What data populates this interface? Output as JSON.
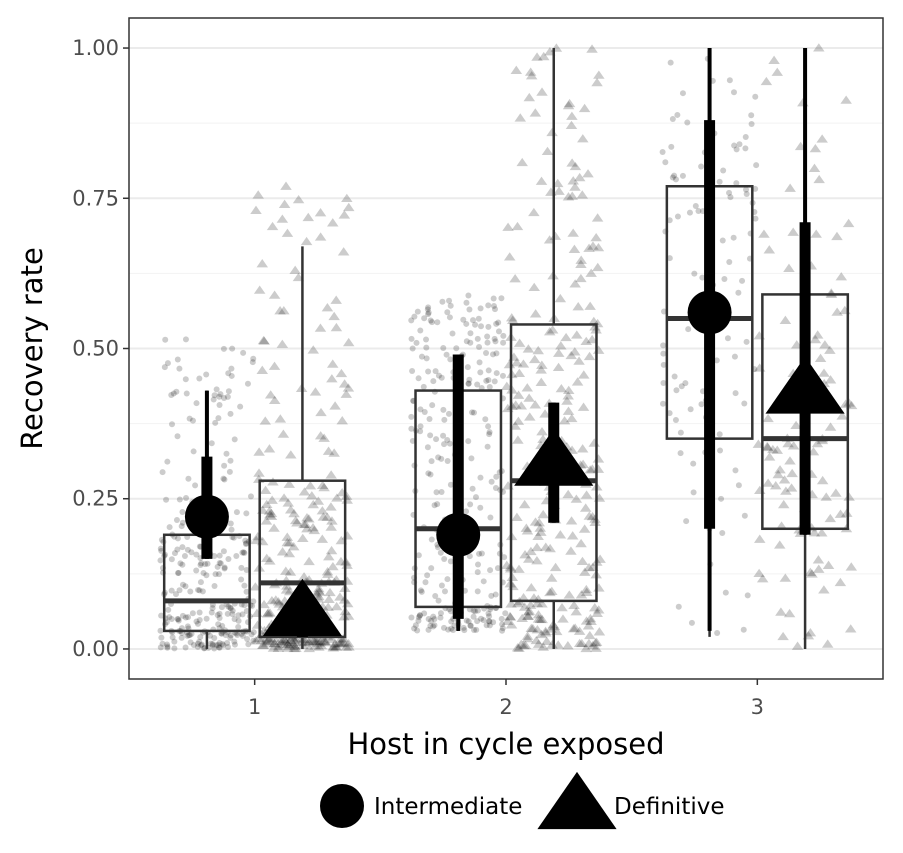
{
  "chart_data": {
    "type": "boxplot",
    "xlabel": "Host in cycle exposed",
    "ylabel": "Recovery rate",
    "categories": [
      "1",
      "2",
      "3"
    ],
    "y_ticks": [
      "0.00",
      "0.25",
      "0.50",
      "0.75",
      "1.00"
    ],
    "ylim": [
      -0.05,
      1.05
    ],
    "grid": true,
    "legend_position": "bottom",
    "series": [
      {
        "name": "Intermediate",
        "shape": "circle",
        "boxes": [
          {
            "category": "1",
            "q1": 0.03,
            "median": 0.08,
            "q3": 0.19,
            "whisker_low": 0.0,
            "whisker_high": 0.43
          },
          {
            "category": "2",
            "q1": 0.07,
            "median": 0.2,
            "q3": 0.43,
            "whisker_low": 0.03,
            "whisker_high": 0.49
          },
          {
            "category": "3",
            "q1": 0.35,
            "median": 0.55,
            "q3": 0.77,
            "whisker_low": 0.02,
            "whisker_high": 1.0
          }
        ],
        "estimates": [
          {
            "category": "1",
            "mean": 0.22,
            "ci_inner": [
              0.15,
              0.32
            ],
            "ci_outer": [
              0.15,
              0.43
            ]
          },
          {
            "category": "2",
            "mean": 0.19,
            "ci_inner": [
              0.05,
              0.49
            ],
            "ci_outer": [
              0.03,
              0.49
            ]
          },
          {
            "category": "3",
            "mean": 0.56,
            "ci_inner": [
              0.2,
              0.88
            ],
            "ci_outer": [
              0.03,
              1.0
            ]
          }
        ]
      },
      {
        "name": "Definitive",
        "shape": "triangle",
        "boxes": [
          {
            "category": "1",
            "q1": 0.02,
            "median": 0.11,
            "q3": 0.28,
            "whisker_low": 0.0,
            "whisker_high": 0.67
          },
          {
            "category": "2",
            "q1": 0.08,
            "median": 0.28,
            "q3": 0.54,
            "whisker_low": 0.0,
            "whisker_high": 1.0
          },
          {
            "category": "3",
            "q1": 0.2,
            "median": 0.35,
            "q3": 0.59,
            "whisker_low": 0.0,
            "whisker_high": 1.0
          }
        ],
        "estimates": [
          {
            "category": "1",
            "mean": 0.06,
            "ci_inner": [
              0.02,
              0.1
            ],
            "ci_outer": [
              0.02,
              0.1
            ]
          },
          {
            "category": "2",
            "mean": 0.31,
            "ci_inner": [
              0.21,
              0.41
            ],
            "ci_outer": [
              0.21,
              0.41
            ]
          },
          {
            "category": "3",
            "mean": 0.43,
            "ci_inner": [
              0.19,
              0.71
            ],
            "ci_outer": [
              0.19,
              1.0
            ]
          }
        ]
      }
    ],
    "colors": {
      "point": "#000000",
      "box_stroke": "#333333",
      "jitter_fill": "#000000",
      "grid": "#ebebeb",
      "panel_border": "#333333"
    }
  }
}
